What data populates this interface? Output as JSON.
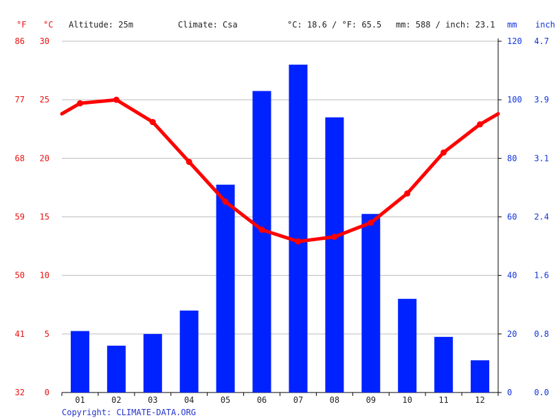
{
  "header": {
    "unit_f": "°F",
    "unit_c": "°C",
    "altitude": "Altitude: 25m",
    "climate": "Climate: Csa",
    "avg_temp": "°C: 18.6 / °F: 65.5",
    "precip_total": "mm: 588 / inch: 23.1",
    "unit_mm": "mm",
    "unit_inch": "inch"
  },
  "copyright": "Copyright: CLIMATE-DATA.ORG",
  "colors": {
    "temperature": "#ff0000",
    "precipitation": "#0022ff",
    "grid": "#bbbbbb"
  },
  "chart_data": {
    "type": "bar",
    "categories": [
      "01",
      "02",
      "03",
      "04",
      "05",
      "06",
      "07",
      "08",
      "09",
      "10",
      "11",
      "12"
    ],
    "series": [
      {
        "type": "bar",
        "axis": "right",
        "unit": "mm",
        "values": [
          21,
          16,
          20,
          28,
          71,
          103,
          112,
          94,
          61,
          32,
          19,
          11
        ]
      },
      {
        "type": "line",
        "axis": "left",
        "unit": "°C",
        "values": [
          24.7,
          25.0,
          23.1,
          19.7,
          16.3,
          13.9,
          12.9,
          13.3,
          14.5,
          17.0,
          20.5,
          22.9
        ]
      }
    ],
    "left_axis_c": {
      "ticks": [
        "0",
        "5",
        "10",
        "15",
        "20",
        "25",
        "30"
      ],
      "range": [
        0,
        30
      ]
    },
    "left_axis_f": {
      "ticks": [
        "32",
        "41",
        "50",
        "59",
        "68",
        "77",
        "86"
      ]
    },
    "right_axis_mm": {
      "ticks": [
        "0",
        "20",
        "40",
        "60",
        "80",
        "100",
        "120"
      ],
      "range": [
        0,
        120
      ]
    },
    "right_axis_inch": {
      "ticks": [
        "0.0",
        "0.8",
        "1.6",
        "2.4",
        "3.1",
        "3.9",
        "4.7"
      ]
    },
    "grid": true
  }
}
